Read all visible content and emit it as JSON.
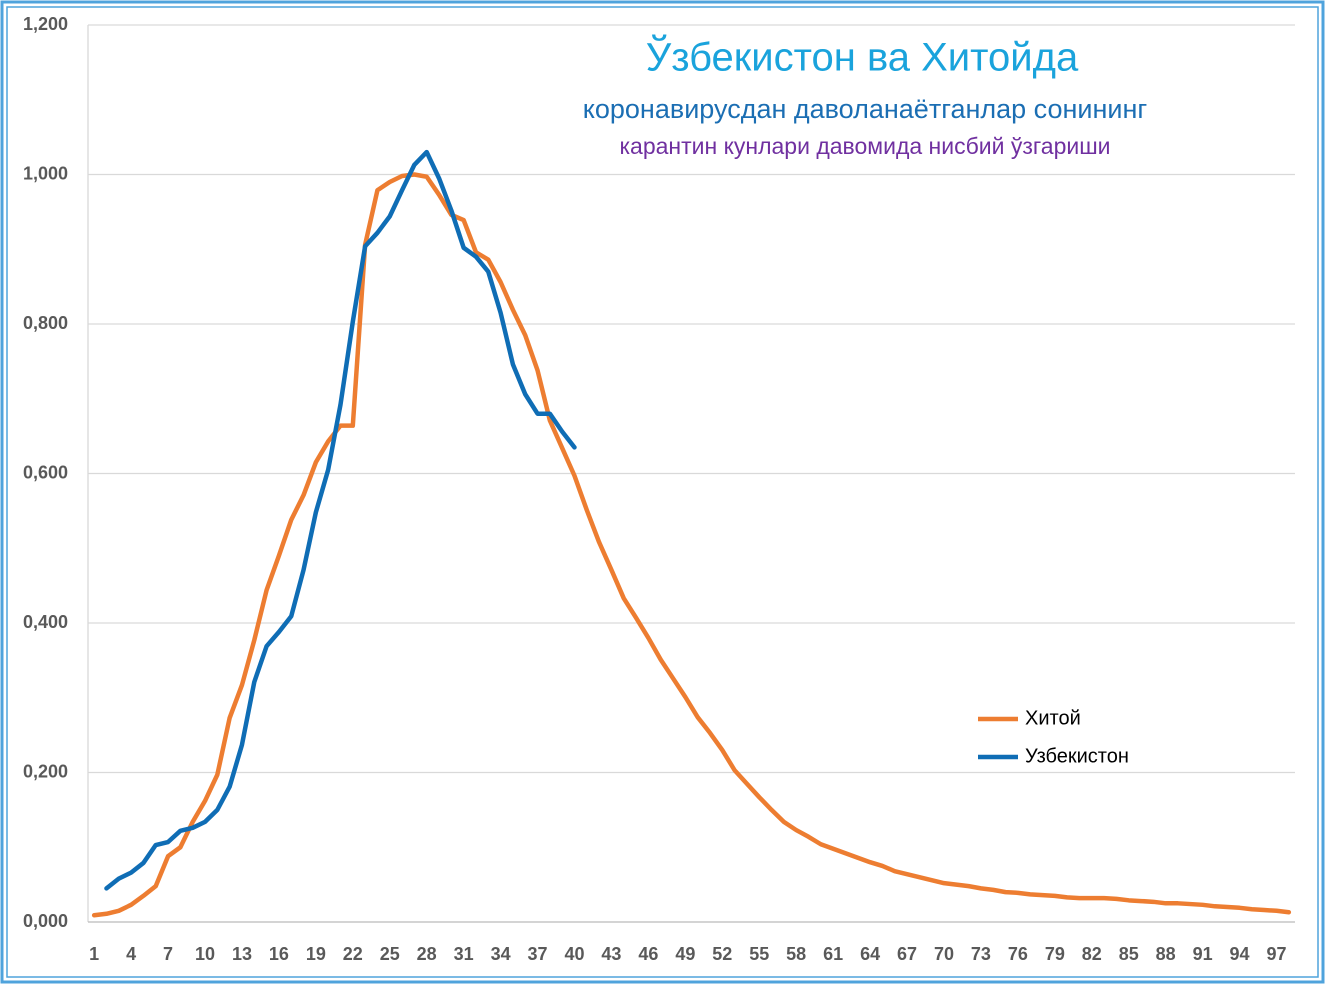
{
  "chart_data": {
    "type": "line",
    "title": "Ўзбекистон ва Хитойда",
    "subtitle": "коронавирусдан даволанаётганлар сонининг",
    "note": "карантин кунлари давомида нисбий ўзгариши",
    "title_color": "#1aa3dc",
    "subtitle_color": "#1b6eb3",
    "note_color": "#7030a0",
    "categories": [
      "1",
      null,
      null,
      "4",
      null,
      null,
      "7",
      null,
      null,
      "10",
      null,
      null,
      "13",
      null,
      null,
      "16",
      null,
      null,
      "19",
      null,
      null,
      "22",
      null,
      null,
      "25",
      null,
      null,
      "28",
      null,
      null,
      "31",
      null,
      null,
      "34",
      null,
      null,
      "37",
      null,
      null,
      "40",
      null,
      null,
      "43",
      null,
      null,
      "46",
      null,
      null,
      "49",
      null,
      null,
      "52",
      null,
      null,
      "55",
      null,
      null,
      "58",
      null,
      null,
      "61",
      null,
      null,
      "64",
      null,
      null,
      "67",
      null,
      null,
      "70",
      null,
      null,
      "73",
      null,
      null,
      "76",
      null,
      null,
      "79",
      null,
      null,
      "82",
      null,
      null,
      "85",
      null,
      null,
      "88",
      null,
      null,
      "91",
      null,
      null,
      "94",
      null,
      null,
      "97",
      null
    ],
    "series": [
      {
        "name": "Хитой",
        "color": "#ed7d31",
        "values": [
          0.009,
          0.011,
          0.015,
          0.023,
          0.035,
          0.048,
          0.088,
          0.1,
          0.134,
          0.162,
          0.197,
          0.273,
          0.317,
          0.377,
          0.444,
          0.49,
          0.538,
          0.571,
          0.615,
          0.643,
          0.664,
          0.664,
          0.906,
          0.979,
          0.99,
          0.998,
          1.0,
          0.997,
          0.973,
          0.946,
          0.939,
          0.896,
          0.886,
          0.856,
          0.819,
          0.785,
          0.738,
          0.671,
          0.634,
          0.597,
          0.551,
          0.508,
          0.471,
          0.433,
          0.407,
          0.38,
          0.351,
          0.326,
          0.301,
          0.274,
          0.253,
          0.23,
          0.203,
          0.185,
          0.167,
          0.15,
          0.134,
          0.123,
          0.114,
          0.104,
          0.098,
          0.092,
          0.086,
          0.08,
          0.075,
          0.068,
          0.064,
          0.06,
          0.056,
          0.052,
          0.05,
          0.048,
          0.045,
          0.043,
          0.04,
          0.039,
          0.037,
          0.036,
          0.035,
          0.033,
          0.032,
          0.032,
          0.032,
          0.031,
          0.029,
          0.028,
          0.027,
          0.025,
          0.025,
          0.024,
          0.023,
          0.021,
          0.02,
          0.019,
          0.017,
          0.016,
          0.015,
          0.013
        ]
      },
      {
        "name": "Узбекистон",
        "color": "#0f6db5",
        "values": [
          null,
          0.045,
          0.058,
          0.066,
          0.079,
          0.103,
          0.107,
          0.122,
          0.126,
          0.134,
          0.15,
          0.181,
          0.237,
          0.321,
          0.369,
          0.388,
          0.409,
          0.471,
          0.548,
          0.605,
          0.692,
          0.803,
          0.904,
          0.922,
          0.944,
          0.979,
          1.013,
          1.03,
          0.995,
          0.952,
          0.902,
          0.89,
          0.87,
          0.815,
          0.746,
          0.706,
          0.68,
          0.68,
          0.656,
          0.635,
          null,
          null,
          null,
          null,
          null,
          null,
          null,
          null,
          null,
          null,
          null,
          null,
          null,
          null,
          null,
          null,
          null,
          null,
          null,
          null,
          null,
          null,
          null,
          null,
          null,
          null,
          null,
          null,
          null,
          null,
          null,
          null,
          null,
          null,
          null,
          null,
          null,
          null,
          null,
          null,
          null,
          null,
          null,
          null,
          null,
          null,
          null,
          null,
          null,
          null,
          null,
          null,
          null,
          null,
          null,
          null,
          null,
          null
        ]
      }
    ],
    "ylim": [
      0,
      1.2
    ],
    "yticks": [
      {
        "value": 0,
        "label": "0,000"
      },
      {
        "value": 0.2,
        "label": "0,200"
      },
      {
        "value": 0.4,
        "label": "0,400"
      },
      {
        "value": 0.6,
        "label": "0,600"
      },
      {
        "value": 0.8,
        "label": "0,800"
      },
      {
        "value": 1.0,
        "label": "1,000"
      },
      {
        "value": 1.2,
        "label": "1,200"
      }
    ],
    "grid": true,
    "legend_position": "right"
  }
}
